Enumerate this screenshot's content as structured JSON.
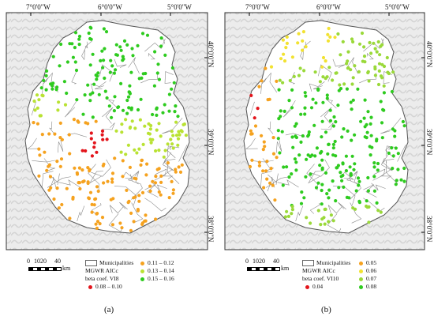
{
  "panels": [
    {
      "id": "a",
      "lon_labels": [
        "7°0'0\"W",
        "6°0'0\"W",
        "5°0'0\"W"
      ],
      "lat_labels": [
        "40°0'0\"N",
        "39°0'0\"N",
        "38°0'0\"N"
      ],
      "scale": {
        "ticks": [
          "0",
          "10",
          "20",
          "40"
        ],
        "unit": "km"
      },
      "legend": {
        "municipalities": "Municipalities",
        "model": "MGWR AICc",
        "coef": "beta coef. VI8",
        "classes": [
          {
            "label": "0.08 – 0.10",
            "color": "#e3141b"
          },
          {
            "label": "0.11 – 0.12",
            "color": "#f5a21f"
          },
          {
            "label": "0.13 – 0.14",
            "color": "#b9e233"
          },
          {
            "label": "0.15 – 0.16",
            "color": "#2ecb1f"
          }
        ]
      },
      "caption": "(a)"
    },
    {
      "id": "b",
      "lon_labels": [
        "7°0'0\"W",
        "6°0'0\"W",
        "5°0'0\"W"
      ],
      "lat_labels": [
        "40°0'0\"N",
        "39°0'0\"N",
        "38°0'0\"N"
      ],
      "scale": {
        "ticks": [
          "0",
          "10",
          "20",
          "40"
        ],
        "unit": "km"
      },
      "legend": {
        "municipalities": "Municipalities",
        "model": "MGWR AICc",
        "coef": "beta coef. VI10",
        "classes": [
          {
            "label": "0.04",
            "color": "#e3141b"
          },
          {
            "label": "0.05",
            "color": "#f5a21f"
          },
          {
            "label": "0.06",
            "color": "#f2e231"
          },
          {
            "label": "0.07",
            "color": "#9ad93a"
          },
          {
            "label": "0.08",
            "color": "#2ecb1f"
          }
        ]
      },
      "caption": "(b)"
    }
  ]
}
